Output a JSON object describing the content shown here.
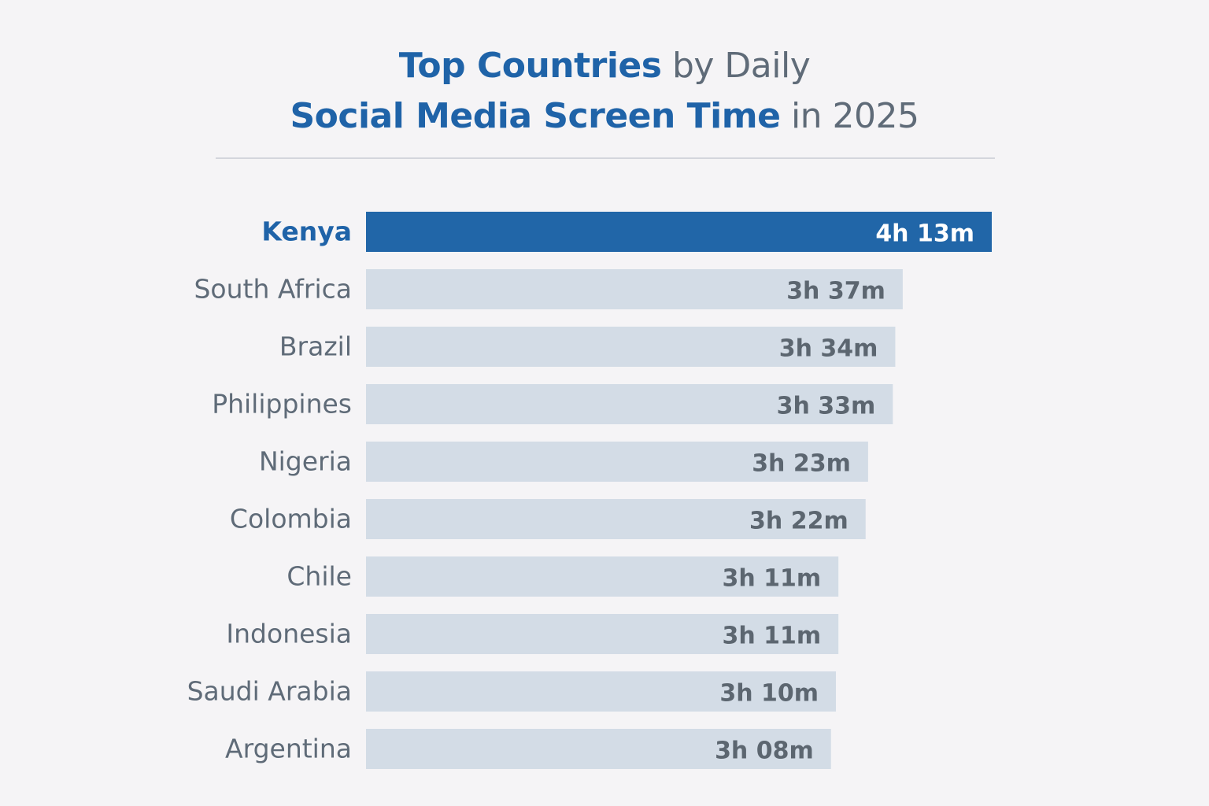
{
  "chart_data": {
    "type": "bar",
    "orientation": "horizontal",
    "title_parts": {
      "line1_bold": "Top Countries",
      "line1_rest": " by Daily",
      "line2_bold": "Social Media Screen Time",
      "line2_rest": " in 2025"
    },
    "categories": [
      "Kenya",
      "South Africa",
      "Brazil",
      "Philippines",
      "Nigeria",
      "Colombia",
      "Chile",
      "Indonesia",
      "Saudi Arabia",
      "Argentina"
    ],
    "values": [
      253,
      217,
      214,
      213,
      203,
      202,
      191,
      191,
      190,
      188
    ],
    "value_unit": "minutes",
    "data_labels": [
      "4h 13m",
      "3h 37m",
      "3h 34m",
      "3h 33m",
      "3h 23m",
      "3h 22m",
      "3h 11m",
      "3h 11m",
      "3h 10m",
      "3h 08m"
    ],
    "highlighted_index": 0,
    "xlabel": "",
    "ylabel": "",
    "grid": false,
    "colors": {
      "highlight": "#2166a8",
      "bar": "#d3dce6",
      "title_accent": "#1f63a8",
      "text": "#5f6b78",
      "background": "#f5f4f6"
    }
  }
}
